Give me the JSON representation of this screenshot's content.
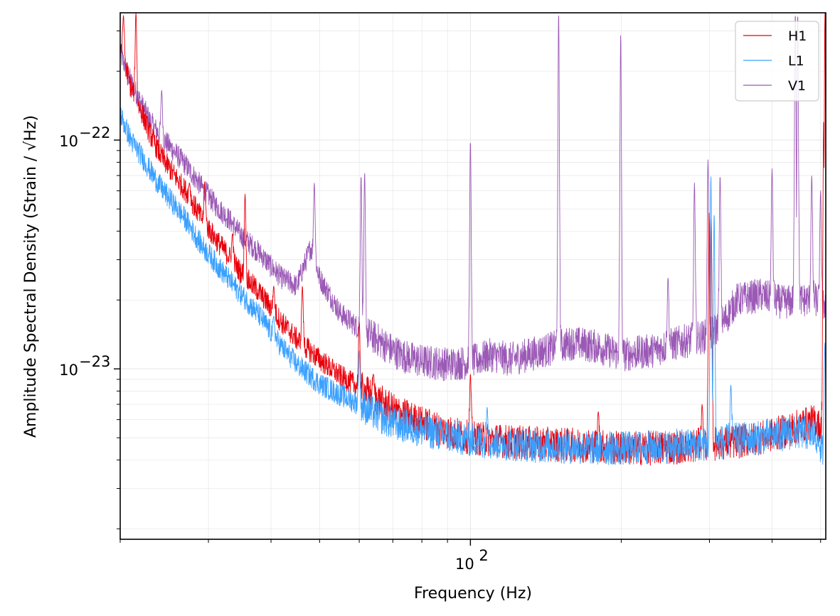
{
  "chart_data": {
    "type": "line",
    "title": "",
    "xlabel": "Frequency (Hz)",
    "ylabel": "Amplitude Spectral Density (Strain / √Hz)",
    "xscale": "log",
    "yscale": "log",
    "xlim": [
      20,
      512
    ],
    "ylim": [
      1.8e-24,
      3.6e-22
    ],
    "grid": true,
    "legend_position": "top-right",
    "x_major_ticks": [
      {
        "value": 100,
        "label": "10",
        "exp": "2"
      }
    ],
    "y_major_ticks": [
      {
        "value": 1e-22,
        "label": "10",
        "exp": "−22"
      },
      {
        "value": 1e-23,
        "label": "10",
        "exp": "−23"
      }
    ],
    "series": [
      {
        "name": "H1",
        "color": "#e8000b",
        "x": [
          20,
          21,
          22,
          23,
          24,
          25,
          27,
          29,
          31,
          33,
          35,
          38,
          40,
          42,
          45,
          50,
          55,
          60,
          65,
          70,
          80,
          90,
          100,
          120,
          140,
          160,
          180,
          200,
          230,
          260,
          300,
          340,
          380,
          420,
          460,
          490,
          505,
          512
        ],
        "y": [
          2.6e-22,
          1.7e-22,
          1.35e-22,
          1.05e-22,
          8.7e-23,
          7.6e-23,
          6e-23,
          4.6e-23,
          3.7e-23,
          3.1e-23,
          2.6e-23,
          2.15e-23,
          1.85e-23,
          1.6e-23,
          1.35e-23,
          1.1e-23,
          9.3e-24,
          8.3e-24,
          7.4e-24,
          6.6e-24,
          5.8e-24,
          5.3e-24,
          5e-24,
          4.8e-24,
          4.7e-24,
          4.65e-24,
          4.6e-24,
          4.5e-24,
          4.5e-24,
          4.55e-24,
          4.7e-24,
          4.8e-24,
          5e-24,
          5.3e-24,
          5.7e-24,
          5.9e-24,
          5.2e-24,
          4.5e-24
        ],
        "peaks": [
          {
            "x": 20.3,
            "y": 3.5e-22
          },
          {
            "x": 21.5,
            "y": 3.6e-22
          },
          {
            "x": 27.5,
            "y": 6.5e-23
          },
          {
            "x": 29.5,
            "y": 6.6e-23
          },
          {
            "x": 33.5,
            "y": 3.9e-23
          },
          {
            "x": 35.5,
            "y": 5.8e-23
          },
          {
            "x": 40.5,
            "y": 2.3e-23
          },
          {
            "x": 46.2,
            "y": 2.3e-23
          },
          {
            "x": 60,
            "y": 1.6e-23
          },
          {
            "x": 64,
            "y": 9.5e-24
          },
          {
            "x": 100,
            "y": 9.5e-24
          },
          {
            "x": 180,
            "y": 6.5e-24
          },
          {
            "x": 290,
            "y": 7e-24
          },
          {
            "x": 299.5,
            "y": 4.8e-23
          },
          {
            "x": 302.5,
            "y": 4.5e-23
          },
          {
            "x": 507,
            "y": 1.2e-22
          },
          {
            "x": 510,
            "y": 3.6e-22
          }
        ]
      },
      {
        "name": "L1",
        "color": "#3aa0ff",
        "x": [
          20,
          21,
          22,
          23,
          24,
          25,
          27,
          29,
          31,
          33,
          35,
          38,
          40,
          42,
          45,
          50,
          55,
          60,
          65,
          70,
          80,
          90,
          100,
          120,
          140,
          160,
          180,
          200,
          230,
          260,
          300,
          340,
          380,
          420,
          460,
          490,
          505,
          512
        ],
        "y": [
          1.3e-22,
          1e-22,
          8.6e-23,
          7.3e-23,
          6.3e-23,
          5.6e-23,
          4.5e-23,
          3.5e-23,
          2.9e-23,
          2.45e-23,
          2.1e-23,
          1.7e-23,
          1.45e-23,
          1.25e-23,
          1.05e-23,
          8.6e-24,
          7.7e-24,
          7e-24,
          6.3e-24,
          5.8e-24,
          5.4e-24,
          5.1e-24,
          4.9e-24,
          4.7e-24,
          4.6e-24,
          4.55e-24,
          4.5e-24,
          4.5e-24,
          4.55e-24,
          4.6e-24,
          4.7e-24,
          4.9e-24,
          5e-24,
          5.2e-24,
          5.3e-24,
          5.1e-24,
          4.3e-24,
          3.7e-24
        ],
        "peaks": [
          {
            "x": 40.5,
            "y": 1.7e-23
          },
          {
            "x": 60,
            "y": 1.2e-23
          },
          {
            "x": 108,
            "y": 6.8e-24
          },
          {
            "x": 302,
            "y": 7e-23
          },
          {
            "x": 306.5,
            "y": 4.8e-23
          },
          {
            "x": 331,
            "y": 8.5e-24
          },
          {
            "x": 510,
            "y": 1.3e-23
          }
        ]
      },
      {
        "name": "V1",
        "color": "#9b59b6",
        "x": [
          20,
          21,
          22,
          23,
          24,
          25,
          27,
          29,
          31,
          33,
          35,
          38,
          40,
          42,
          45,
          48,
          50,
          55,
          60,
          65,
          70,
          75,
          80,
          90,
          100,
          110,
          120,
          140,
          160,
          180,
          200,
          230,
          260,
          300,
          320,
          340,
          380,
          420,
          460,
          490,
          505,
          512
        ],
        "y": [
          2.4e-22,
          1.8e-22,
          1.45e-22,
          1.2e-22,
          1.05e-22,
          9.5e-23,
          7.8e-23,
          6.3e-23,
          5.2e-23,
          4.5e-23,
          3.8e-23,
          3.2e-23,
          2.8e-23,
          2.5e-23,
          2.3e-23,
          3.4e-23,
          2.5e-23,
          1.75e-23,
          1.5e-23,
          1.35e-23,
          1.2e-23,
          1.12e-23,
          1.08e-23,
          1.05e-23,
          1.07e-23,
          1.15e-23,
          1.1e-23,
          1.2e-23,
          1.3e-23,
          1.25e-23,
          1.15e-23,
          1.2e-23,
          1.3e-23,
          1.4e-23,
          1.6e-23,
          2e-23,
          2.1e-23,
          1.95e-23,
          2e-23,
          2e-23,
          1.85e-23,
          2e-23
        ],
        "peaks": [
          {
            "x": 24.2,
            "y": 1.65e-22
          },
          {
            "x": 48.8,
            "y": 6.5e-23
          },
          {
            "x": 60.5,
            "y": 7e-23
          },
          {
            "x": 61.5,
            "y": 7.2e-23
          },
          {
            "x": 100,
            "y": 1e-22
          },
          {
            "x": 150,
            "y": 3.6e-22
          },
          {
            "x": 199.5,
            "y": 2.9e-22
          },
          {
            "x": 248,
            "y": 2.5e-23
          },
          {
            "x": 280,
            "y": 6.5e-23
          },
          {
            "x": 298,
            "y": 8.2e-23
          },
          {
            "x": 315,
            "y": 7e-23
          },
          {
            "x": 400,
            "y": 7.5e-23
          },
          {
            "x": 445,
            "y": 3.6e-22
          },
          {
            "x": 450,
            "y": 3.6e-22
          },
          {
            "x": 480,
            "y": 7e-23
          },
          {
            "x": 500,
            "y": 6e-23
          }
        ]
      }
    ]
  }
}
